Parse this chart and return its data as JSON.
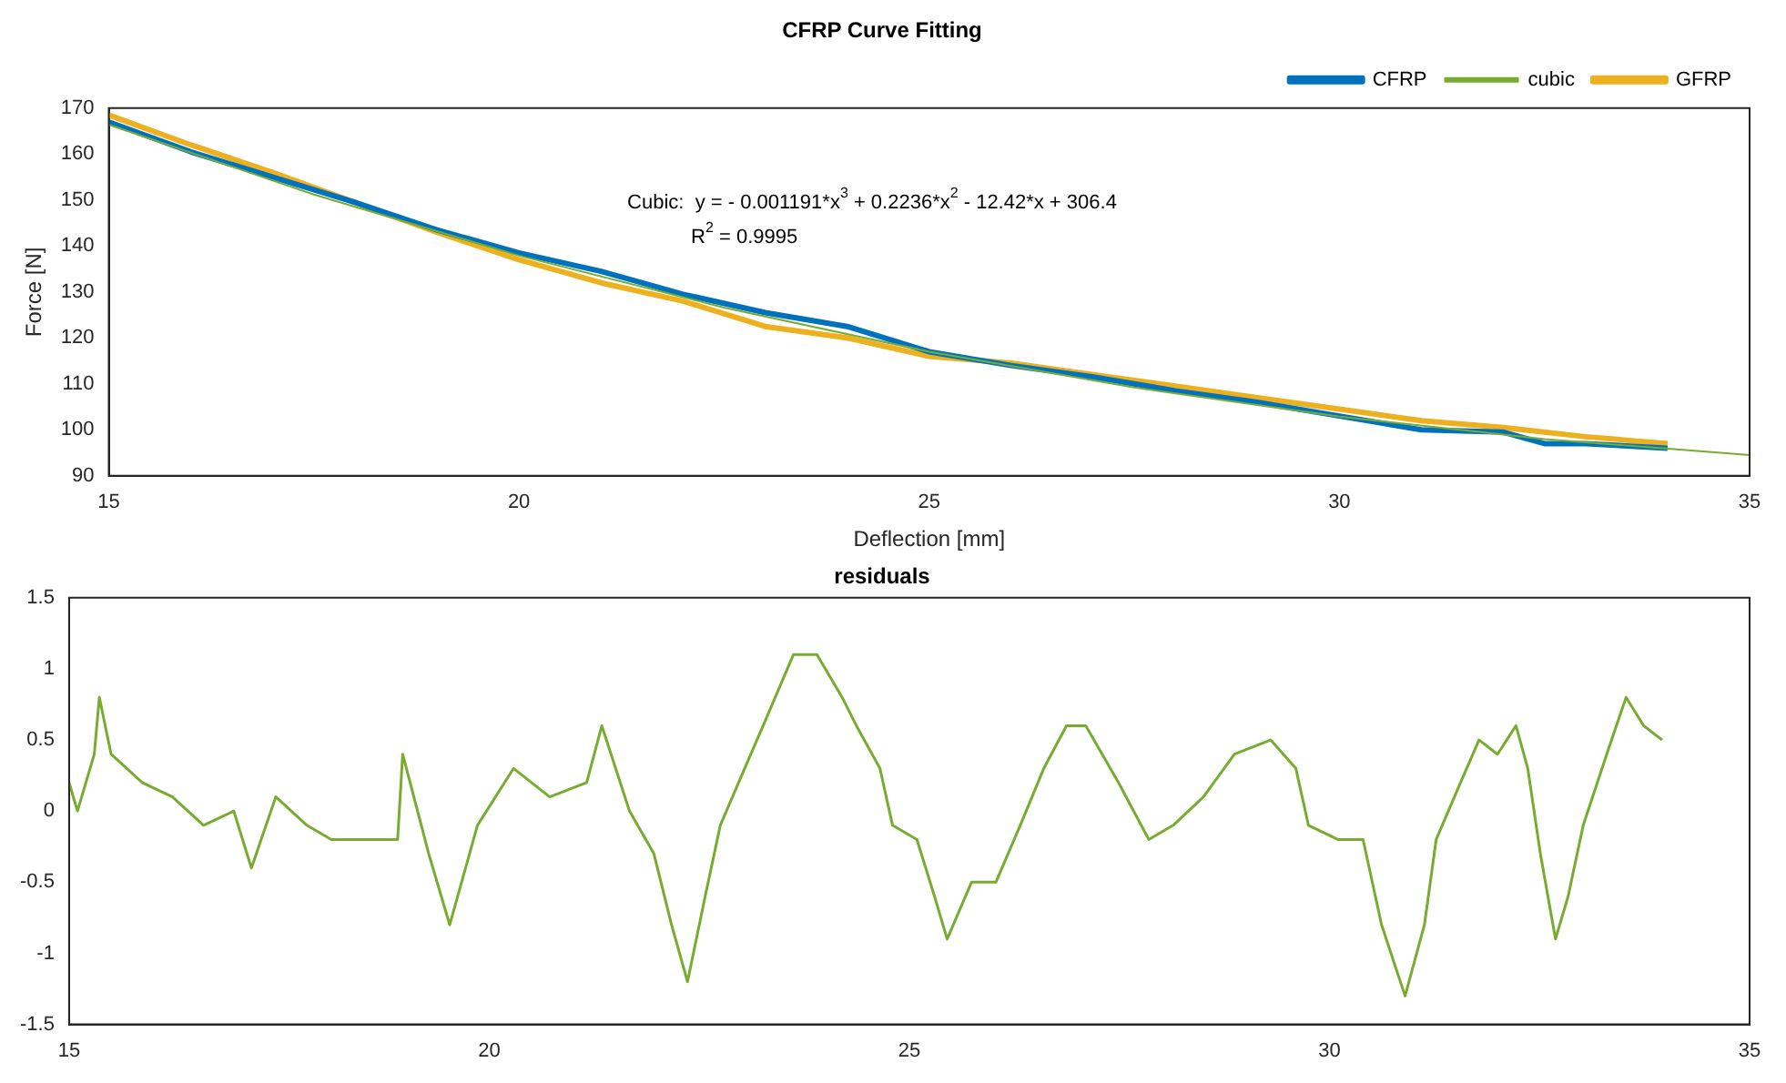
{
  "chart_data": [
    {
      "type": "line",
      "title": "CFRP Curve Fitting",
      "xlabel": "Deflection [mm]",
      "ylabel": "Force [N]",
      "annotations": [
        "Cubic:  y = - 0.001191*x$^{3}$ + 0.2236*x$^{2}$ - 12.42*x + 306.4",
        "R$^{2}$ = 0.9995"
      ],
      "series": [
        {
          "name": "CFRP",
          "color": "#0072bd",
          "x": [
            15,
            16,
            17,
            18,
            19,
            20,
            21,
            22,
            23,
            24,
            25,
            26,
            27,
            28,
            29,
            30,
            31,
            32,
            32.5,
            33,
            34
          ],
          "values": [
            167,
            160.5,
            155,
            149.5,
            143.5,
            138.5,
            134.5,
            129.5,
            125.5,
            122.5,
            117,
            114,
            111.5,
            108.5,
            106,
            103,
            100,
            99.5,
            97,
            97,
            96
          ]
        },
        {
          "name": "cubic",
          "color": "#77ac30",
          "x": [
            15,
            17.5,
            20,
            22.5,
            25,
            27.5,
            30,
            32.5,
            35
          ],
          "values": [
            166.4,
            151.2,
            137.9,
            126.6,
            117,
            109.2,
            102.9,
            98,
            94.5
          ]
        },
        {
          "name": "GFRP",
          "color": "#edb120",
          "x": [
            15,
            16,
            17,
            18,
            19,
            20,
            21,
            22,
            23,
            24,
            25,
            26,
            27,
            28,
            29,
            30,
            31,
            32,
            33,
            34
          ],
          "values": [
            168.5,
            162,
            156,
            149.5,
            143,
            137,
            132,
            128,
            122.5,
            120,
            116,
            114.5,
            112,
            109.5,
            107,
            104.5,
            102,
            100.5,
            98.5,
            97
          ]
        }
      ],
      "xlim": [
        15,
        35
      ],
      "xticks": [
        15,
        20,
        25,
        30,
        35
      ],
      "ylim": [
        90,
        170
      ],
      "yticks": [
        90,
        100,
        110,
        120,
        130,
        140,
        150,
        160,
        170
      ],
      "grid": false,
      "legend": "top right",
      "marker": "none"
    },
    {
      "type": "line",
      "title": "residuals",
      "series": [
        {
          "color": "#77ac30",
          "x": [
            15,
            15.1,
            15.3,
            15.36,
            15.5,
            15.87,
            16.23,
            16.6,
            16.96,
            17.17,
            17.46,
            17.83,
            18.12,
            18.4,
            18.7,
            18.91,
            18.97,
            19.28,
            19.53,
            19.86,
            20.29,
            20.72,
            21.16,
            21.34,
            21.67,
            21.96,
            22.17,
            22.36,
            22.57,
            22.75,
            23.04,
            23.26,
            23.62,
            23.9,
            24.2,
            24.37,
            24.65,
            24.8,
            25.09,
            25.3,
            25.45,
            25.74,
            26.03,
            26.32,
            26.6,
            26.87,
            27.1,
            27.49,
            27.85,
            28.14,
            28.5,
            28.87,
            29.3,
            29.6,
            29.75,
            30.1,
            30.4,
            30.62,
            30.9,
            31.13,
            31.27,
            31.56,
            31.78,
            32,
            32.22,
            32.36,
            32.51,
            32.69,
            32.84,
            33.02,
            33.3,
            33.53,
            33.74,
            33.96
          ],
          "values": [
            0.2,
            0,
            0.4,
            0.8,
            0.4,
            0.2,
            0.1,
            -0.1,
            0,
            -0.4,
            0.1,
            -0.1,
            -0.2,
            -0.2,
            -0.2,
            -0.2,
            0.4,
            -0.3,
            -0.8,
            -0.1,
            0.3,
            0.1,
            0.2,
            0.6,
            0,
            -0.3,
            -0.8,
            -1.2,
            -0.6,
            -0.1,
            0.3,
            0.6,
            1.1,
            1.1,
            0.8,
            0.6,
            0.3,
            -0.1,
            -0.2,
            -0.6,
            -0.9,
            -0.5,
            -0.5,
            -0.1,
            0.3,
            0.6,
            0.6,
            0.2,
            -0.2,
            -0.1,
            0.1,
            0.4,
            0.5,
            0.3,
            -0.1,
            -0.2,
            -0.2,
            -0.8,
            -1.3,
            -0.8,
            -0.2,
            0.2,
            0.5,
            0.4,
            0.6,
            0.3,
            -0.3,
            -0.9,
            -0.6,
            -0.1,
            0.4,
            0.8,
            0.6,
            0.5
          ]
        }
      ],
      "xlim": [
        15,
        35
      ],
      "xticks": [
        15,
        20,
        25,
        30,
        35
      ],
      "ylim": [
        -1.5,
        1.5
      ],
      "yticks": [
        -1.5,
        -1,
        -0.5,
        0,
        0.5,
        1,
        1.5
      ],
      "grid": false,
      "marker": "none"
    }
  ]
}
